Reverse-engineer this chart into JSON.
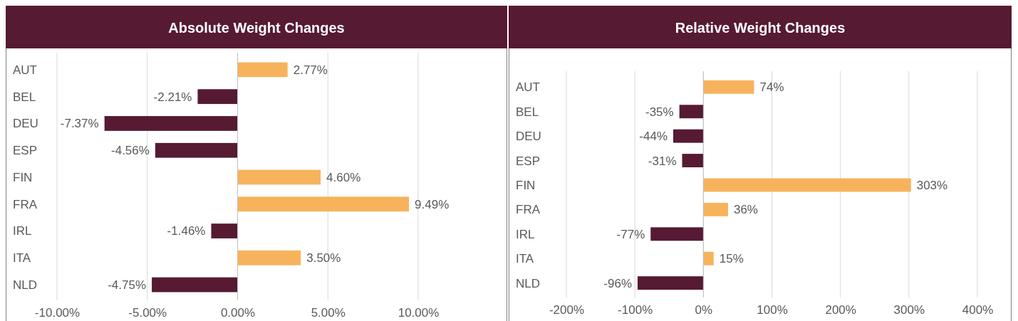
{
  "chart_data": [
    {
      "type": "bar",
      "orientation": "horizontal",
      "title": "Absolute Weight Changes",
      "categories": [
        "AUT",
        "BEL",
        "DEU",
        "ESP",
        "FIN",
        "FRA",
        "IRL",
        "ITA",
        "NLD"
      ],
      "values": [
        2.77,
        -2.21,
        -7.37,
        -4.56,
        4.6,
        9.49,
        -1.46,
        3.5,
        -4.75
      ],
      "colors": [
        "#f7b35c",
        "#561a33",
        "#561a33",
        "#561a33",
        "#f7b35c",
        "#f7b35c",
        "#561a33",
        "#f7b35c",
        "#561a33"
      ],
      "value_labels": [
        "2.77%",
        "-2.21%",
        "-7.37%",
        "-4.56%",
        "4.60%",
        "9.49%",
        "-1.46%",
        "3.50%",
        "-4.75%"
      ],
      "xlim": [
        -10,
        10
      ],
      "xticks": [
        {
          "value": -10,
          "label": "-10.00%"
        },
        {
          "value": -5,
          "label": "-5.00%"
        },
        {
          "value": 0,
          "label": "0.00%"
        },
        {
          "value": 5,
          "label": "5.00%"
        },
        {
          "value": 10,
          "label": "10.00%"
        }
      ],
      "grid": "x"
    },
    {
      "type": "bar",
      "orientation": "horizontal",
      "title": "Relative Weight Changes",
      "categories": [
        "AUT",
        "BEL",
        "DEU",
        "ESP",
        "FIN",
        "FRA",
        "IRL",
        "ITA",
        "NLD"
      ],
      "values": [
        74,
        -35,
        -44,
        -31,
        303,
        36,
        -77,
        15,
        -96
      ],
      "colors": [
        "#f7b35c",
        "#561a33",
        "#561a33",
        "#561a33",
        "#f7b35c",
        "#f7b35c",
        "#561a33",
        "#f7b35c",
        "#561a33"
      ],
      "value_labels": [
        "74%",
        "-35%",
        "-44%",
        "-31%",
        "303%",
        "36%",
        "-77%",
        "15%",
        "-96%"
      ],
      "xlim": [
        -200,
        400
      ],
      "xticks": [
        {
          "value": -200,
          "label": "-200%"
        },
        {
          "value": -100,
          "label": "-100%"
        },
        {
          "value": 0,
          "label": "0%"
        },
        {
          "value": 100,
          "label": "100%"
        },
        {
          "value": 200,
          "label": "200%"
        },
        {
          "value": 300,
          "label": "300%"
        },
        {
          "value": 400,
          "label": "400%"
        }
      ],
      "grid": "x"
    }
  ]
}
